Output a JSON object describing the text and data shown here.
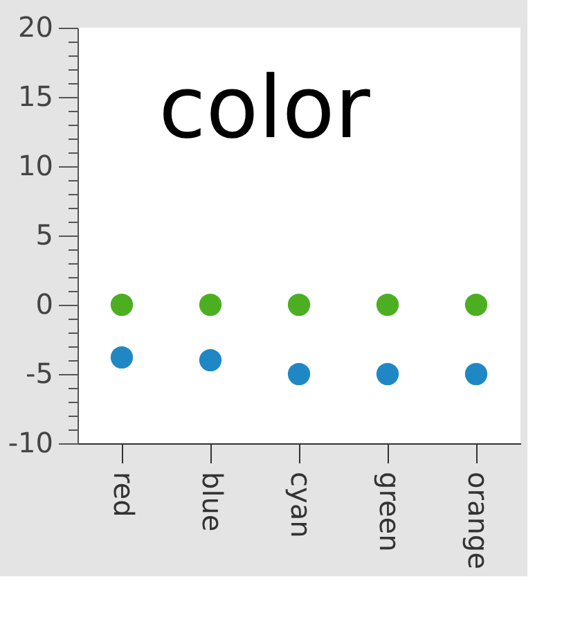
{
  "chart_data": {
    "type": "scatter",
    "title": "color",
    "categories": [
      "red",
      "blue",
      "cyan",
      "green",
      "orange"
    ],
    "series": [
      {
        "color": "#4caf22",
        "values": [
          0,
          0,
          0,
          0,
          0
        ]
      },
      {
        "color": "#1f88c4",
        "values": [
          -3.8,
          -4,
          -5,
          -5,
          -5
        ]
      }
    ],
    "ylim": [
      -10,
      20
    ],
    "yticks": [
      -10,
      {
        "value": -9,
        "label": null
      },
      {
        "value": -8,
        "label": null
      },
      {
        "value": -7,
        "label": null
      },
      {
        "value": -6,
        "label": null
      },
      -5,
      {
        "value": -4,
        "label": null
      },
      {
        "value": -3,
        "label": null
      },
      {
        "value": -2,
        "label": null
      },
      {
        "value": -1,
        "label": null
      },
      0,
      {
        "value": 1,
        "label": null
      },
      {
        "value": 2,
        "label": null
      },
      {
        "value": 3,
        "label": null
      },
      {
        "value": 4,
        "label": null
      },
      5,
      {
        "value": 6,
        "label": null
      },
      {
        "value": 7,
        "label": null
      },
      {
        "value": 8,
        "label": null
      },
      {
        "value": 9,
        "label": null
      },
      10,
      {
        "value": 11,
        "label": null
      },
      {
        "value": 12,
        "label": null
      },
      {
        "value": 13,
        "label": null
      },
      {
        "value": 14,
        "label": null
      },
      15,
      {
        "value": 16,
        "label": null
      },
      {
        "value": 17,
        "label": null
      },
      {
        "value": 18,
        "label": null
      },
      {
        "value": 19,
        "label": null
      },
      20
    ],
    "marker": "circle",
    "grid": false
  }
}
